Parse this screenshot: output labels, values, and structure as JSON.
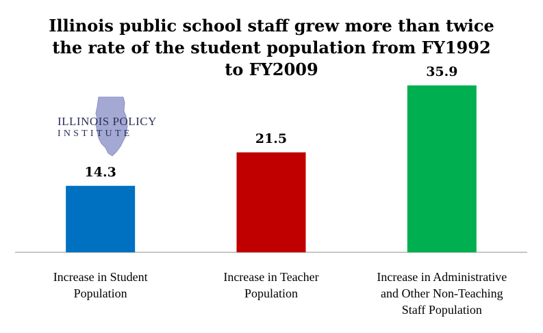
{
  "title_lines": [
    "Illinois public school staff grew more than twice",
    "the rate of the student population from FY1992",
    "to FY2009"
  ],
  "logo": {
    "line1": "ILLINOIS POLICY",
    "line2": "INSTITUTE",
    "icon": "illinois-state-outline",
    "color": "#2a2f5a",
    "shape_color": "#a3a9d2"
  },
  "chart_data": {
    "type": "bar",
    "categories": [
      [
        "Increase in Student",
        "Population"
      ],
      [
        "Increase in Teacher",
        "Population"
      ],
      [
        "Increase in Administrative",
        "and Other Non-Teaching",
        "Staff Population"
      ]
    ],
    "values": [
      14.3,
      21.5,
      35.9
    ],
    "value_labels": [
      "14.3",
      "21.5",
      "35.9"
    ],
    "colors": [
      "#0070c0",
      "#c00000",
      "#00b050"
    ],
    "ylim": [
      0,
      40
    ],
    "grid": false,
    "legend": "none",
    "xlabel": "",
    "ylabel": ""
  }
}
